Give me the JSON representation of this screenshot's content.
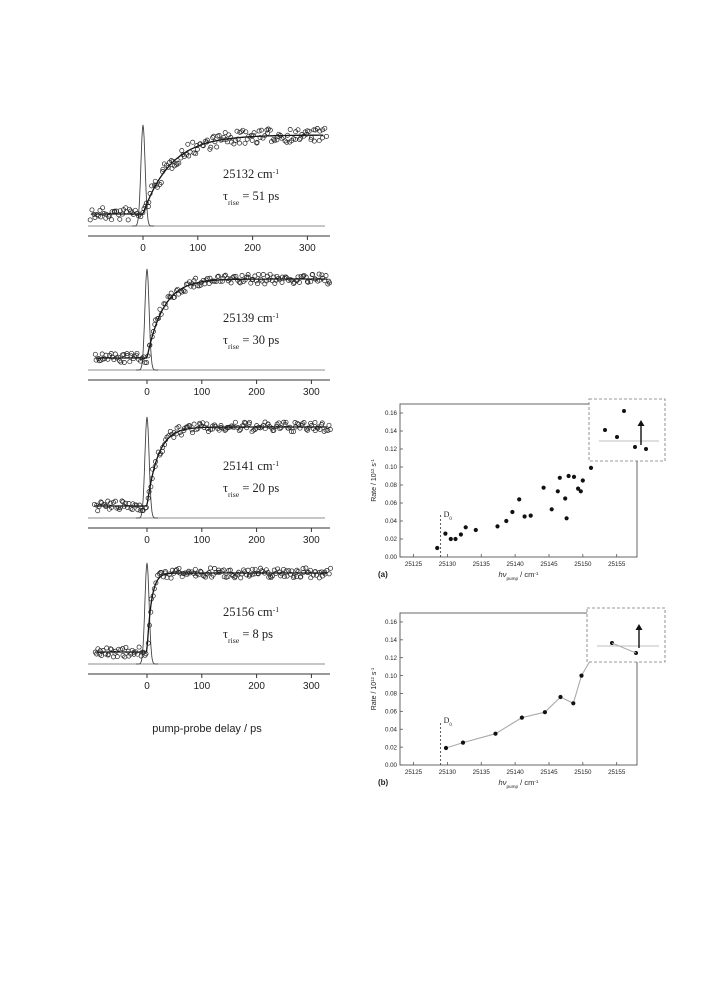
{
  "left_panels": {
    "xlabel": "pump-probe delay / ps",
    "xticks": [
      0,
      100,
      200,
      300
    ],
    "panels": [
      {
        "energy": "25132 cm",
        "energy_sup": "-1",
        "tau_prefix": "τ",
        "tau_sub": "rise",
        "tau_value": "= 51 ps",
        "tau_ps": 51
      },
      {
        "energy": "25139 cm",
        "energy_sup": "-1",
        "tau_prefix": "τ",
        "tau_sub": "rise",
        "tau_value": "= 30 ps",
        "tau_ps": 30
      },
      {
        "energy": "25141 cm",
        "energy_sup": "-1",
        "tau_prefix": "τ",
        "tau_sub": "rise",
        "tau_value": "= 20 ps",
        "tau_ps": 20
      },
      {
        "energy": "25156 cm",
        "energy_sup": "-1",
        "tau_prefix": "τ",
        "tau_sub": "rise",
        "tau_value": "= 8 ps",
        "tau_ps": 8
      }
    ]
  },
  "chart_data": [
    {
      "type": "scatter",
      "panel_label": "(a)",
      "xlabel": "hν",
      "xlabel_sub": "pump",
      "xlabel_unit": " / cm",
      "xlabel_sup": "-1",
      "ylabel": "Rate / 10",
      "ylabel_sup": "12",
      "ylabel_unit": " s",
      "ylabel_sup2": "-1",
      "xlim": [
        25123,
        25158
      ],
      "ylim": [
        0,
        0.17
      ],
      "xticks": [
        25125,
        25130,
        25135,
        25140,
        25145,
        25150,
        25155
      ],
      "yticks": [
        "0.00",
        "0.02",
        "0.04",
        "0.06",
        "0.08",
        "0.10",
        "0.12",
        "0.14",
        "0.16"
      ],
      "d0_label": "D",
      "d0_sub": "0",
      "d0_x": 25129,
      "x": [
        25128.5,
        25129.7,
        25130.5,
        25131.2,
        25132.0,
        25132.7,
        25134.2,
        25137.4,
        25138.7,
        25139.6,
        25140.6,
        25141.4,
        25142.3,
        25144.2,
        25145.4,
        25146.3,
        25146.6,
        25147.4,
        25147.6,
        25147.9,
        25148.7,
        25149.3,
        25149.7,
        25150.0,
        25151.2
      ],
      "y": [
        0.01,
        0.026,
        0.02,
        0.02,
        0.025,
        0.033,
        0.03,
        0.034,
        0.04,
        0.05,
        0.064,
        0.045,
        0.046,
        0.077,
        0.053,
        0.073,
        0.088,
        0.065,
        0.043,
        0.09,
        0.089,
        0.076,
        0.073,
        0.085,
        0.099
      ],
      "inset_present": true
    },
    {
      "type": "line",
      "panel_label": "(b)",
      "xlabel": "hν",
      "xlabel_sub": "pump",
      "xlabel_unit": " / cm",
      "xlabel_sup": "-1",
      "ylabel": "Rate / 10",
      "ylabel_sup": "12",
      "ylabel_unit": " s",
      "ylabel_sup2": "-1",
      "xlim": [
        25123,
        25158
      ],
      "ylim": [
        0,
        0.17
      ],
      "xticks": [
        25125,
        25130,
        25135,
        25140,
        25145,
        25150,
        25155
      ],
      "yticks": [
        "0.00",
        "0.02",
        "0.04",
        "0.06",
        "0.08",
        "0.10",
        "0.12",
        "0.14",
        "0.16"
      ],
      "d0_label": "D",
      "d0_sub": "0",
      "d0_x": 25129,
      "x": [
        25129.8,
        25132.3,
        25137.1,
        25141.0,
        25144.4,
        25146.7,
        25148.6,
        25149.8,
        25152.2,
        25155.1
      ],
      "y": [
        0.019,
        0.025,
        0.035,
        0.053,
        0.059,
        0.076,
        0.069,
        0.1,
        0.131,
        0.122
      ],
      "inset_present": true
    }
  ]
}
